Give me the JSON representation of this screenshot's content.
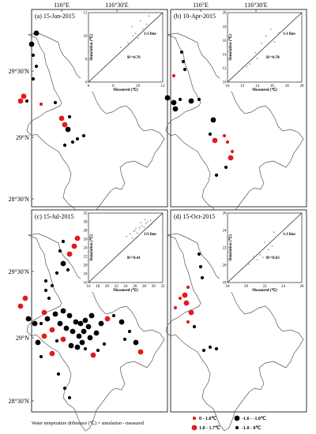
{
  "top_axis": {
    "lon_ticks": [
      "116°E",
      "116°30'E"
    ]
  },
  "left_axis": {
    "lat_ticks": [
      "29°30'N",
      "29°N",
      "28°30'N"
    ]
  },
  "panels": [
    {
      "label": "(a)  15-Jan-2015",
      "inset": {
        "x_ticks": [
          "6",
          "8",
          "10",
          "12"
        ],
        "y_ticks": [
          "6",
          "8",
          "10",
          "12"
        ],
        "xlabel": "Measured (℃)",
        "ylabel": "Simulation (℃)",
        "line_label": "1:1 line",
        "r2": "R²=0.76"
      }
    },
    {
      "label": "(b)  10-Apr-2015",
      "inset": {
        "x_ticks": [
          "10",
          "12",
          "14",
          "16",
          "18",
          "20"
        ],
        "y_ticks": [
          "10",
          "12",
          "14",
          "16",
          "18",
          "20"
        ],
        "xlabel": "Measured (℃)",
        "ylabel": "Simulation (℃)",
        "line_label": "1:1 line",
        "r2": "R²=0.78"
      }
    },
    {
      "label": "(c)  15-Jul-2015",
      "inset": {
        "x_ticks": [
          "16",
          "18",
          "20",
          "22",
          "24",
          "26",
          "28",
          "30",
          "32"
        ],
        "y_ticks": [
          "16",
          "18",
          "20",
          "22",
          "24",
          "26",
          "28",
          "30",
          "32"
        ],
        "xlabel": "Measured (℃)",
        "ylabel": "Simulation (℃)",
        "line_label": "1:1 line",
        "r2": "R²=0.41"
      }
    },
    {
      "label": "(d)  15-Oct-2015",
      "inset": {
        "x_ticks": [
          "18",
          "20",
          "22",
          "24",
          "26"
        ],
        "y_ticks": [
          "18",
          "20",
          "22",
          "24",
          "26"
        ],
        "xlabel": "Measured (℃)",
        "ylabel": "Simulation (℃)",
        "line_label": "1:1 line",
        "r2": "R²=0.63"
      }
    }
  ],
  "legend": {
    "title": "Water temperature difference (℃) = simulation - measured",
    "items": [
      {
        "label": "0 - 1.0℃",
        "color": "#e31a1c",
        "size": "small"
      },
      {
        "label": "1.0 - 1.7℃",
        "color": "#e31a1c",
        "size": "large"
      },
      {
        "label": "-1.6 - -1.0℃",
        "color": "#000000",
        "size": "large"
      },
      {
        "label": "-1.0 - 0℃",
        "color": "#000000",
        "size": "small"
      }
    ]
  }
}
